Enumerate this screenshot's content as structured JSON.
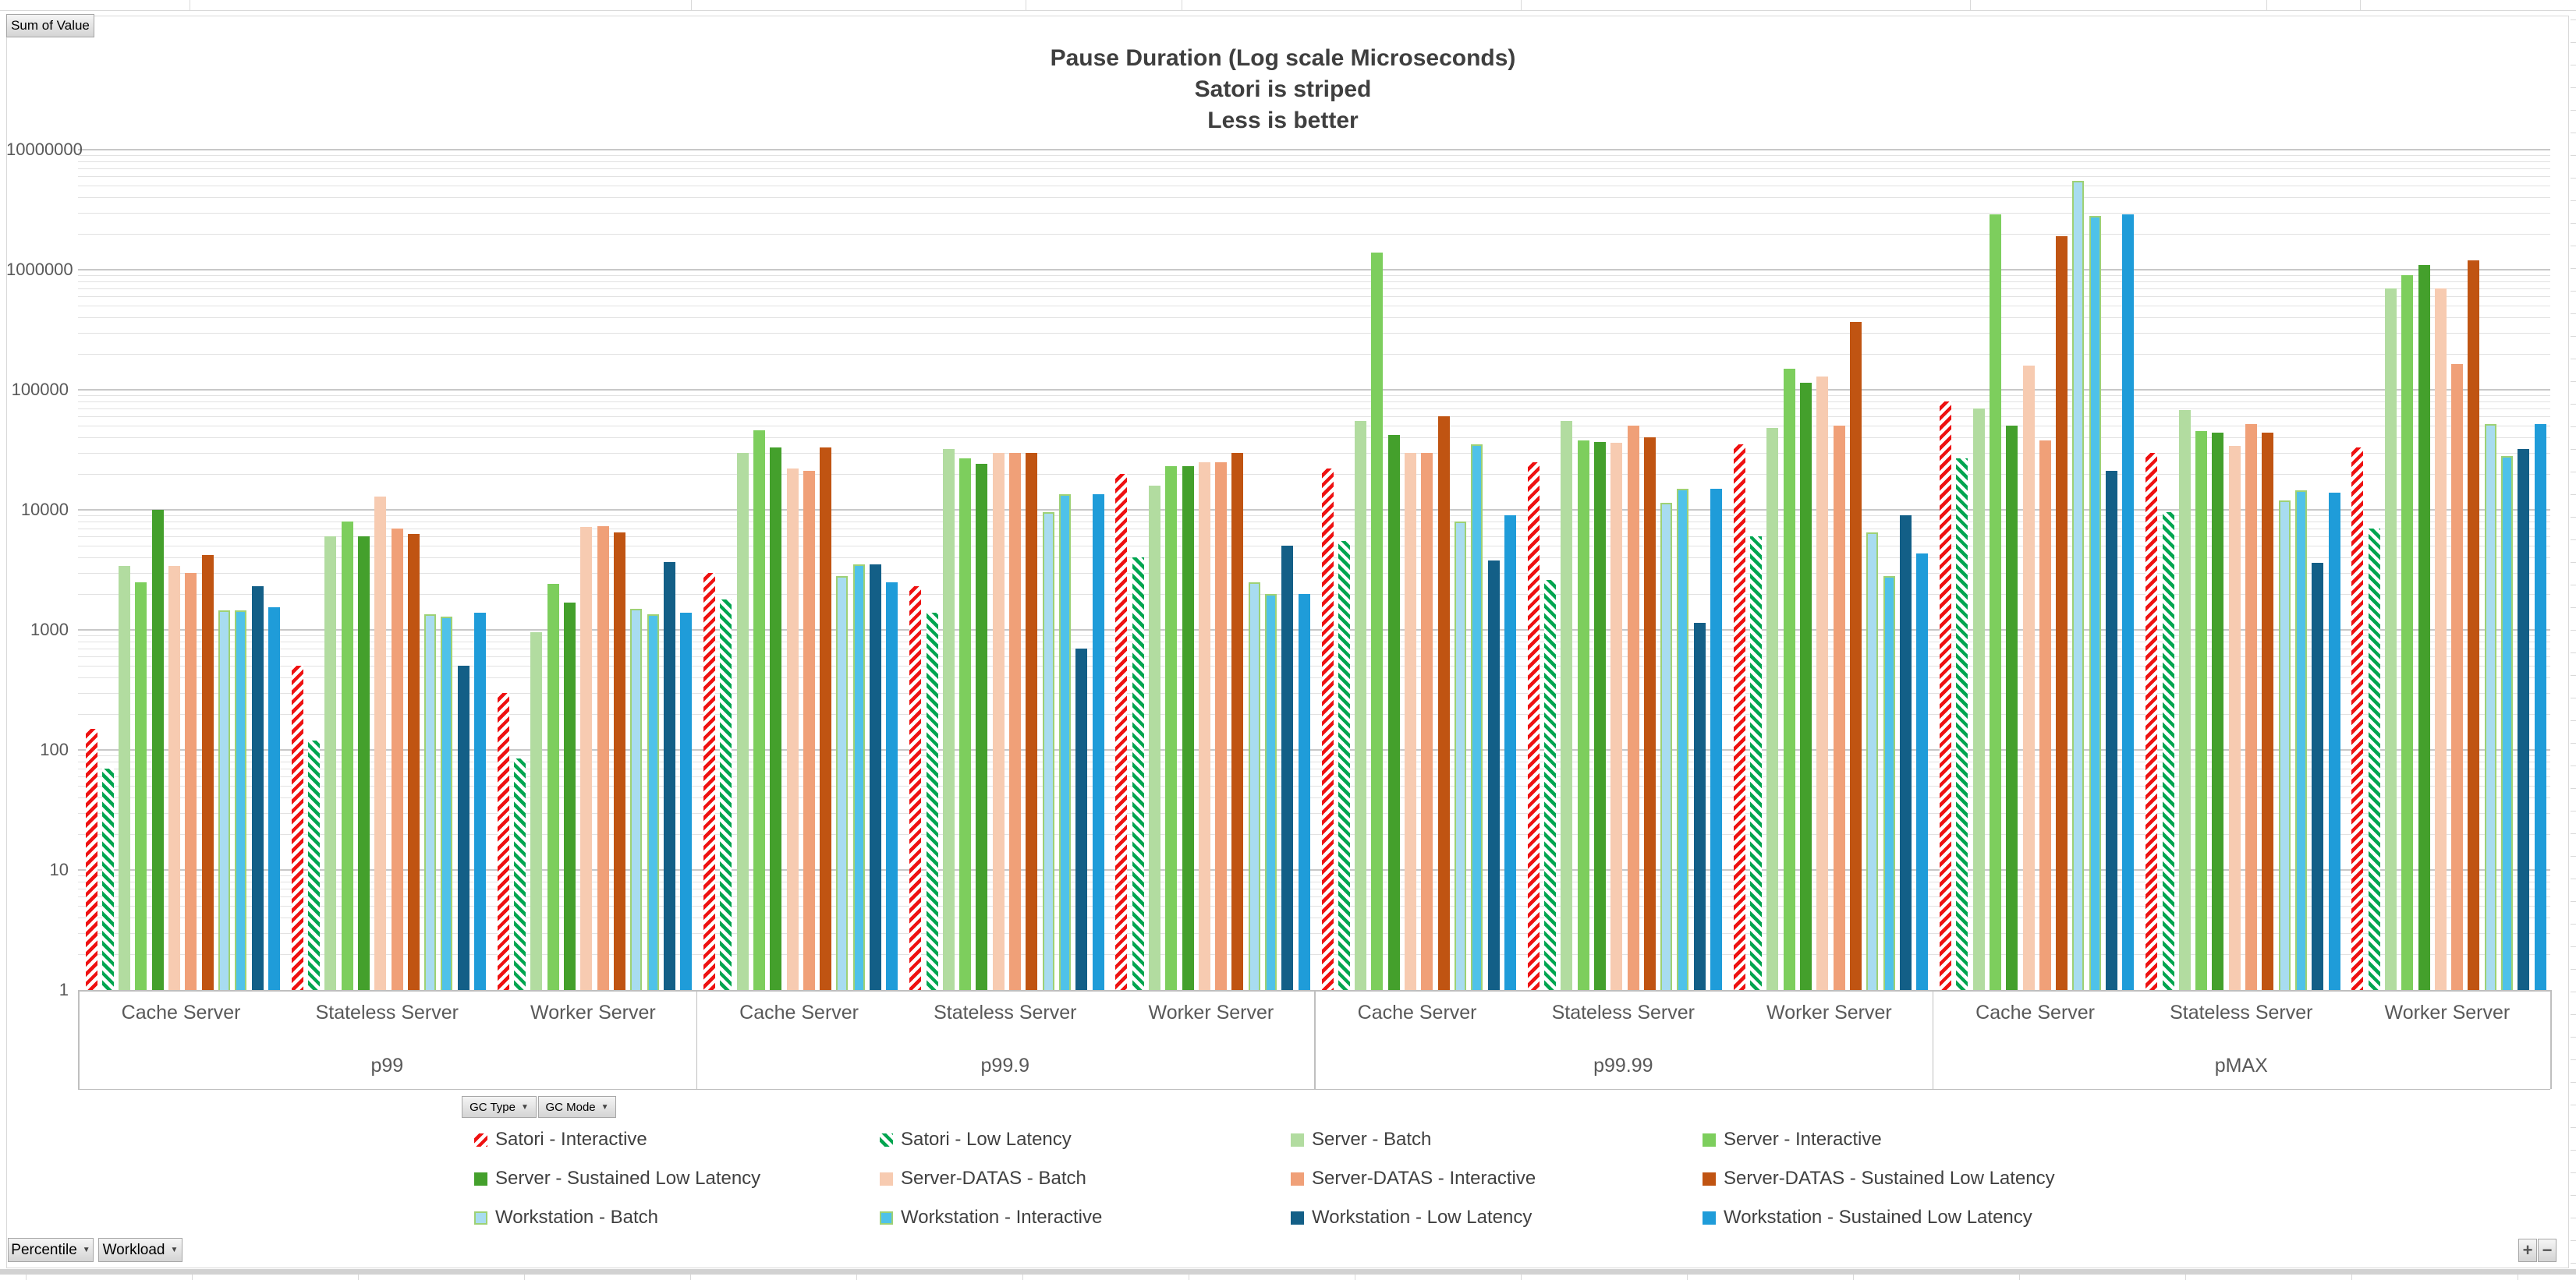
{
  "app": {
    "sum_of_value_button": "Sum of Value",
    "gc_type_button": "GC Type",
    "gc_mode_button": "GC Mode",
    "percentile_button": "Percentile",
    "workload_button": "Workload",
    "expand_button": "+",
    "collapse_button": "−",
    "dropdown_arrow": "▼"
  },
  "title": {
    "line1": "Pause Duration (Log scale Microseconds)",
    "line2": "Satori is striped",
    "line3": "Less is better"
  },
  "y_axis": {
    "ticks": [
      "1",
      "10",
      "100",
      "1000",
      "10000",
      "100000",
      "1000000",
      "10000000"
    ]
  },
  "chart_data": {
    "type": "bar",
    "y_scale": "log10",
    "ylim": [
      1,
      10000000
    ],
    "grid": "log minor + major gridlines",
    "legend_position": "bottom, 4 columns x 3 rows",
    "value_unit": "microseconds",
    "percentiles": [
      "p99",
      "p99.9",
      "p99.99",
      "pMAX"
    ],
    "workloads": [
      "Cache Server",
      "Stateless Server",
      "Worker Server"
    ],
    "groups_note": "12 groups = each percentile x each workload, values below are per group in that order",
    "series": [
      {
        "name": "Satori - Interactive",
        "color": "#ee1111",
        "pattern": "stripe-up",
        "values": [
          150,
          500,
          300,
          3000,
          2300,
          20000,
          22000,
          25000,
          35000,
          80000,
          30000,
          33000
        ]
      },
      {
        "name": "Satori - Low Latency",
        "color": "#00a550",
        "pattern": "stripe-down",
        "values": [
          70,
          120,
          85,
          1800,
          1400,
          4000,
          5500,
          2600,
          6000,
          27000,
          9500,
          7000
        ]
      },
      {
        "name": "Server - Batch",
        "color": "#b2dca0",
        "pattern": "solid",
        "values": [
          3400,
          6000,
          950,
          30000,
          32000,
          16000,
          55000,
          55000,
          48000,
          70000,
          68000,
          700000
        ]
      },
      {
        "name": "Server - Interactive",
        "color": "#7dce5d",
        "pattern": "solid",
        "values": [
          2500,
          8000,
          2400,
          46000,
          27000,
          23000,
          1400000,
          38000,
          150000,
          2900000,
          45000,
          900000
        ]
      },
      {
        "name": "Server - Sustained Low Latency",
        "color": "#44a02c",
        "pattern": "solid",
        "values": [
          10000,
          6000,
          1700,
          33000,
          24000,
          23000,
          42000,
          37000,
          115000,
          50000,
          44000,
          1100000
        ]
      },
      {
        "name": "Server-DATAS - Batch",
        "color": "#f7cbb1",
        "pattern": "solid",
        "values": [
          3400,
          13000,
          7200,
          22000,
          30000,
          25000,
          30000,
          36000,
          130000,
          160000,
          34000,
          700000
        ]
      },
      {
        "name": "Server-DATAS - Interactive",
        "color": "#f0a078",
        "pattern": "solid",
        "values": [
          3000,
          7000,
          7300,
          21000,
          30000,
          25000,
          30000,
          50000,
          50000,
          38000,
          52000,
          165000
        ]
      },
      {
        "name": "Server-DATAS - Sustained Low Latency",
        "color": "#c05412",
        "pattern": "solid",
        "values": [
          4200,
          6300,
          6500,
          33000,
          30000,
          30000,
          60000,
          40000,
          370000,
          1900000,
          44000,
          1200000
        ]
      },
      {
        "name": "Workstation - Batch",
        "color": "#a8dcf0",
        "pattern": "solid",
        "border": "#9ed175",
        "values": [
          1450,
          1350,
          1500,
          2800,
          9500,
          2500,
          8000,
          11500,
          6500,
          5500000,
          12000,
          52000
        ]
      },
      {
        "name": "Workstation - Interactive",
        "color": "#4fc2e9",
        "pattern": "solid",
        "border": "#9ed175",
        "values": [
          1450,
          1300,
          1350,
          3500,
          13500,
          2000,
          35000,
          15000,
          2800,
          2800000,
          14500,
          28000
        ]
      },
      {
        "name": "Workstation - Low Latency",
        "color": "#135f87",
        "pattern": "solid",
        "values": [
          2300,
          500,
          3700,
          3500,
          700,
          5000,
          3800,
          1150,
          9000,
          21000,
          3600,
          32000
        ]
      },
      {
        "name": "Workstation - Sustained Low Latency",
        "color": "#1f9cd9",
        "pattern": "solid",
        "values": [
          1550,
          1400,
          1400,
          2500,
          13500,
          2000,
          9000,
          15000,
          4300,
          2900000,
          14000,
          52000
        ]
      }
    ]
  }
}
